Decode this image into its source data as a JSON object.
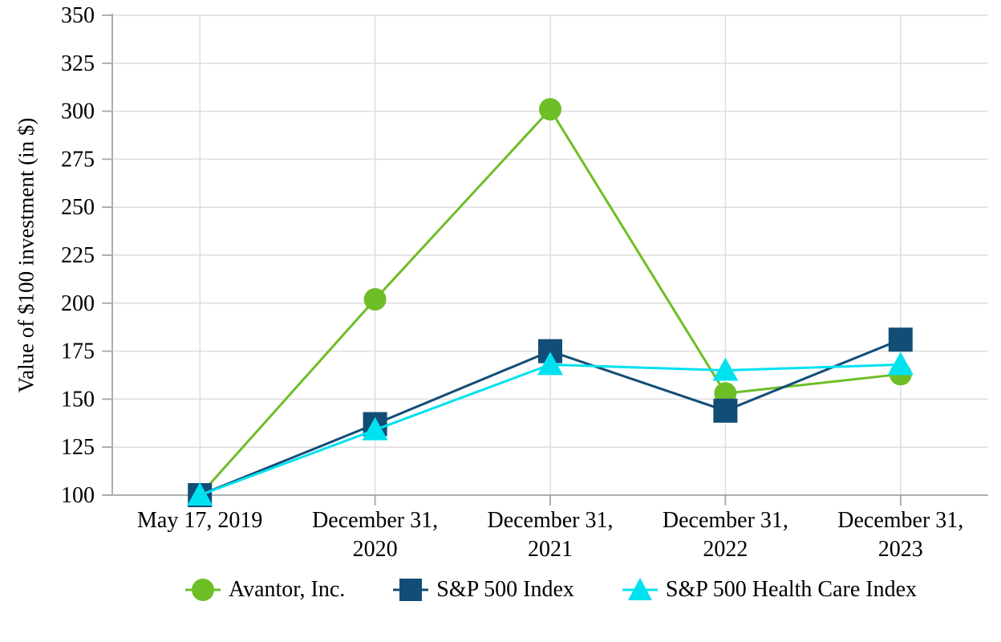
{
  "chart_data": {
    "type": "line",
    "title": "",
    "xlabel": "",
    "ylabel": "Value of $100 investment (in $)",
    "ylim": [
      100,
      350
    ],
    "yticks": [
      100,
      125,
      150,
      175,
      200,
      225,
      250,
      275,
      300,
      325,
      350
    ],
    "grid": true,
    "legend_position": "bottom",
    "categories": [
      "May 17, 2019",
      "December 31, 2020",
      "December 31, 2021",
      "December 31, 2022",
      "December 31, 2023"
    ],
    "category_label_lines": [
      [
        "May 17, 2019"
      ],
      [
        "December 31,",
        "2020"
      ],
      [
        "December 31,",
        "2021"
      ],
      [
        "December 31,",
        "2022"
      ],
      [
        "December 31,",
        "2023"
      ]
    ],
    "series": [
      {
        "name": "Avantor, Inc.",
        "marker": "circle",
        "color": "#6EBE27",
        "values": [
          100,
          202,
          301,
          153,
          163
        ]
      },
      {
        "name": "S&P 500 Index",
        "marker": "square",
        "color": "#124D76",
        "values": [
          100,
          137,
          175,
          144,
          181
        ]
      },
      {
        "name": "S&P 500 Health Care Index",
        "marker": "triangle",
        "color": "#00E1F0",
        "values": [
          100,
          134,
          168,
          165,
          168
        ]
      }
    ],
    "colors": {
      "gridline": "#DEDEDE",
      "axis": "#A6A6A6",
      "text": "#000000",
      "background": "#FFFFFF"
    }
  }
}
